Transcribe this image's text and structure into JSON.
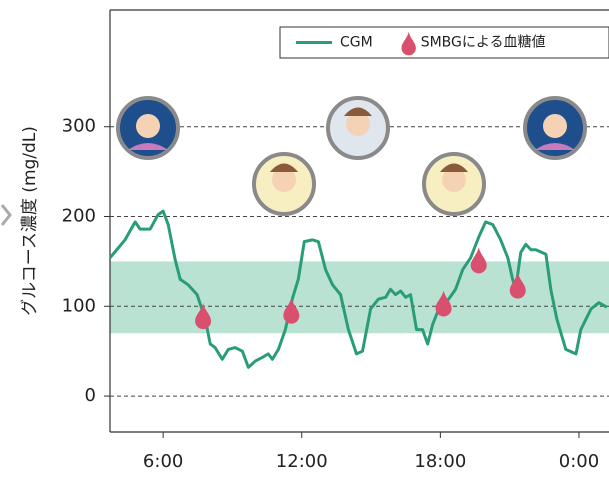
{
  "chart_data": {
    "type": "line",
    "ylabel": "グルコース濃度 (mg/dL)",
    "xlim": [
      3.7,
      25.3
    ],
    "xticks": [
      {
        "value": 6,
        "label": "6:00"
      },
      {
        "value": 12,
        "label": "12:00"
      },
      {
        "value": 18,
        "label": "18:00"
      },
      {
        "value": 24,
        "label": "0:00"
      }
    ],
    "ylim": [
      -40,
      430
    ],
    "yticks": [
      0,
      100,
      200,
      300
    ],
    "grid": true,
    "band": [
      70,
      150
    ],
    "band_color": "#b9e2d3",
    "legend": "top-right",
    "series": [
      {
        "name": "CGM",
        "type": "line",
        "color": "#2a9d78",
        "x": [
          3.7,
          4.35,
          4.79,
          5.0,
          5.44,
          5.78,
          6.0,
          6.22,
          6.52,
          6.74,
          7.08,
          7.47,
          7.82,
          8.04,
          8.25,
          8.56,
          8.82,
          9.12,
          9.43,
          9.69,
          9.99,
          10.29,
          10.55,
          10.73,
          10.99,
          11.29,
          11.59,
          11.85,
          12.11,
          12.46,
          12.72,
          13.03,
          13.33,
          13.68,
          14.02,
          14.37,
          14.63,
          14.98,
          15.32,
          15.63,
          15.84,
          16.06,
          16.28,
          16.5,
          16.71,
          16.97,
          17.23,
          17.45,
          17.67,
          17.93,
          18.36,
          18.66,
          18.97,
          19.31,
          19.66,
          19.96,
          20.27,
          20.61,
          20.92,
          21.13,
          21.26,
          21.48,
          21.7,
          21.92,
          22.13,
          22.57,
          22.78,
          23.04,
          23.43,
          23.87,
          24.08,
          24.52,
          24.86,
          25.21
        ],
        "values": [
          154,
          174,
          194,
          186,
          186,
          202,
          206,
          191,
          152,
          130,
          124,
          113,
          86,
          58,
          54,
          41,
          52,
          54,
          50,
          32,
          39,
          43,
          47,
          41,
          52,
          74,
          108,
          130,
          172,
          174,
          172,
          141,
          124,
          113,
          74,
          47,
          50,
          97,
          108,
          110,
          119,
          113,
          117,
          110,
          113,
          74,
          74,
          58,
          80,
          97,
          108,
          119,
          141,
          154,
          177,
          194,
          191,
          174,
          154,
          130,
          119,
          160,
          169,
          163,
          163,
          158,
          119,
          86,
          52,
          47,
          74,
          97,
          104,
          99
        ]
      },
      {
        "name": "SMBGによる血糖値",
        "type": "scatter",
        "color": "#d9506e",
        "x": [
          7.73,
          11.55,
          18.14,
          19.66,
          21.35
        ],
        "values": [
          88,
          94,
          102,
          150,
          122
        ]
      }
    ]
  }
}
